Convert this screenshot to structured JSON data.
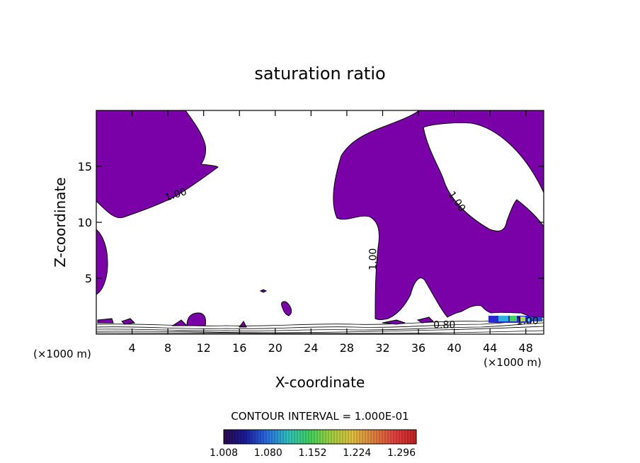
{
  "chart_data": {
    "type": "contour",
    "title": "saturation ratio",
    "xlabel": "X-coordinate",
    "ylabel": "Z-coordinate",
    "x_unit_label": "(×1000 m)",
    "x_unit_label_right": "(×1000 m)",
    "xlim": [
      0,
      50
    ],
    "ylim": [
      0,
      20
    ],
    "x_ticks": [
      4,
      8,
      12,
      16,
      20,
      24,
      28,
      32,
      36,
      40,
      44,
      48
    ],
    "y_ticks": [
      5,
      10,
      15
    ],
    "contour_interval_label": "CONTOUR INTERVAL = 1.000E-01",
    "fill_threshold": 1.0,
    "fill_color": "#7a00a8",
    "contour_labels": [
      {
        "text": "1.00",
        "x": 9.0,
        "y": 12.2,
        "angle": -18
      },
      {
        "text": "1.00",
        "x": 40.0,
        "y": 11.7,
        "angle": 55
      },
      {
        "text": "1.00",
        "x": 31.3,
        "y": 6.7,
        "angle": -90
      },
      {
        "text": "0.80",
        "x": 38.9,
        "y": 0.55,
        "angle": 0
      },
      {
        "text": "1.00",
        "x": 48.2,
        "y": 0.9,
        "angle": 0
      }
    ],
    "colorbar": {
      "min": 1.008,
      "max": 1.32,
      "tick_labels": [
        "1.008",
        "1.080",
        "1.152",
        "1.224",
        "1.296"
      ],
      "colors": [
        "#2a0a4a",
        "#1a1a9a",
        "#2a6ae0",
        "#30c0c0",
        "#40d060",
        "#a0d040",
        "#e0c040",
        "#e08040",
        "#e04040",
        "#c02020"
      ]
    }
  }
}
